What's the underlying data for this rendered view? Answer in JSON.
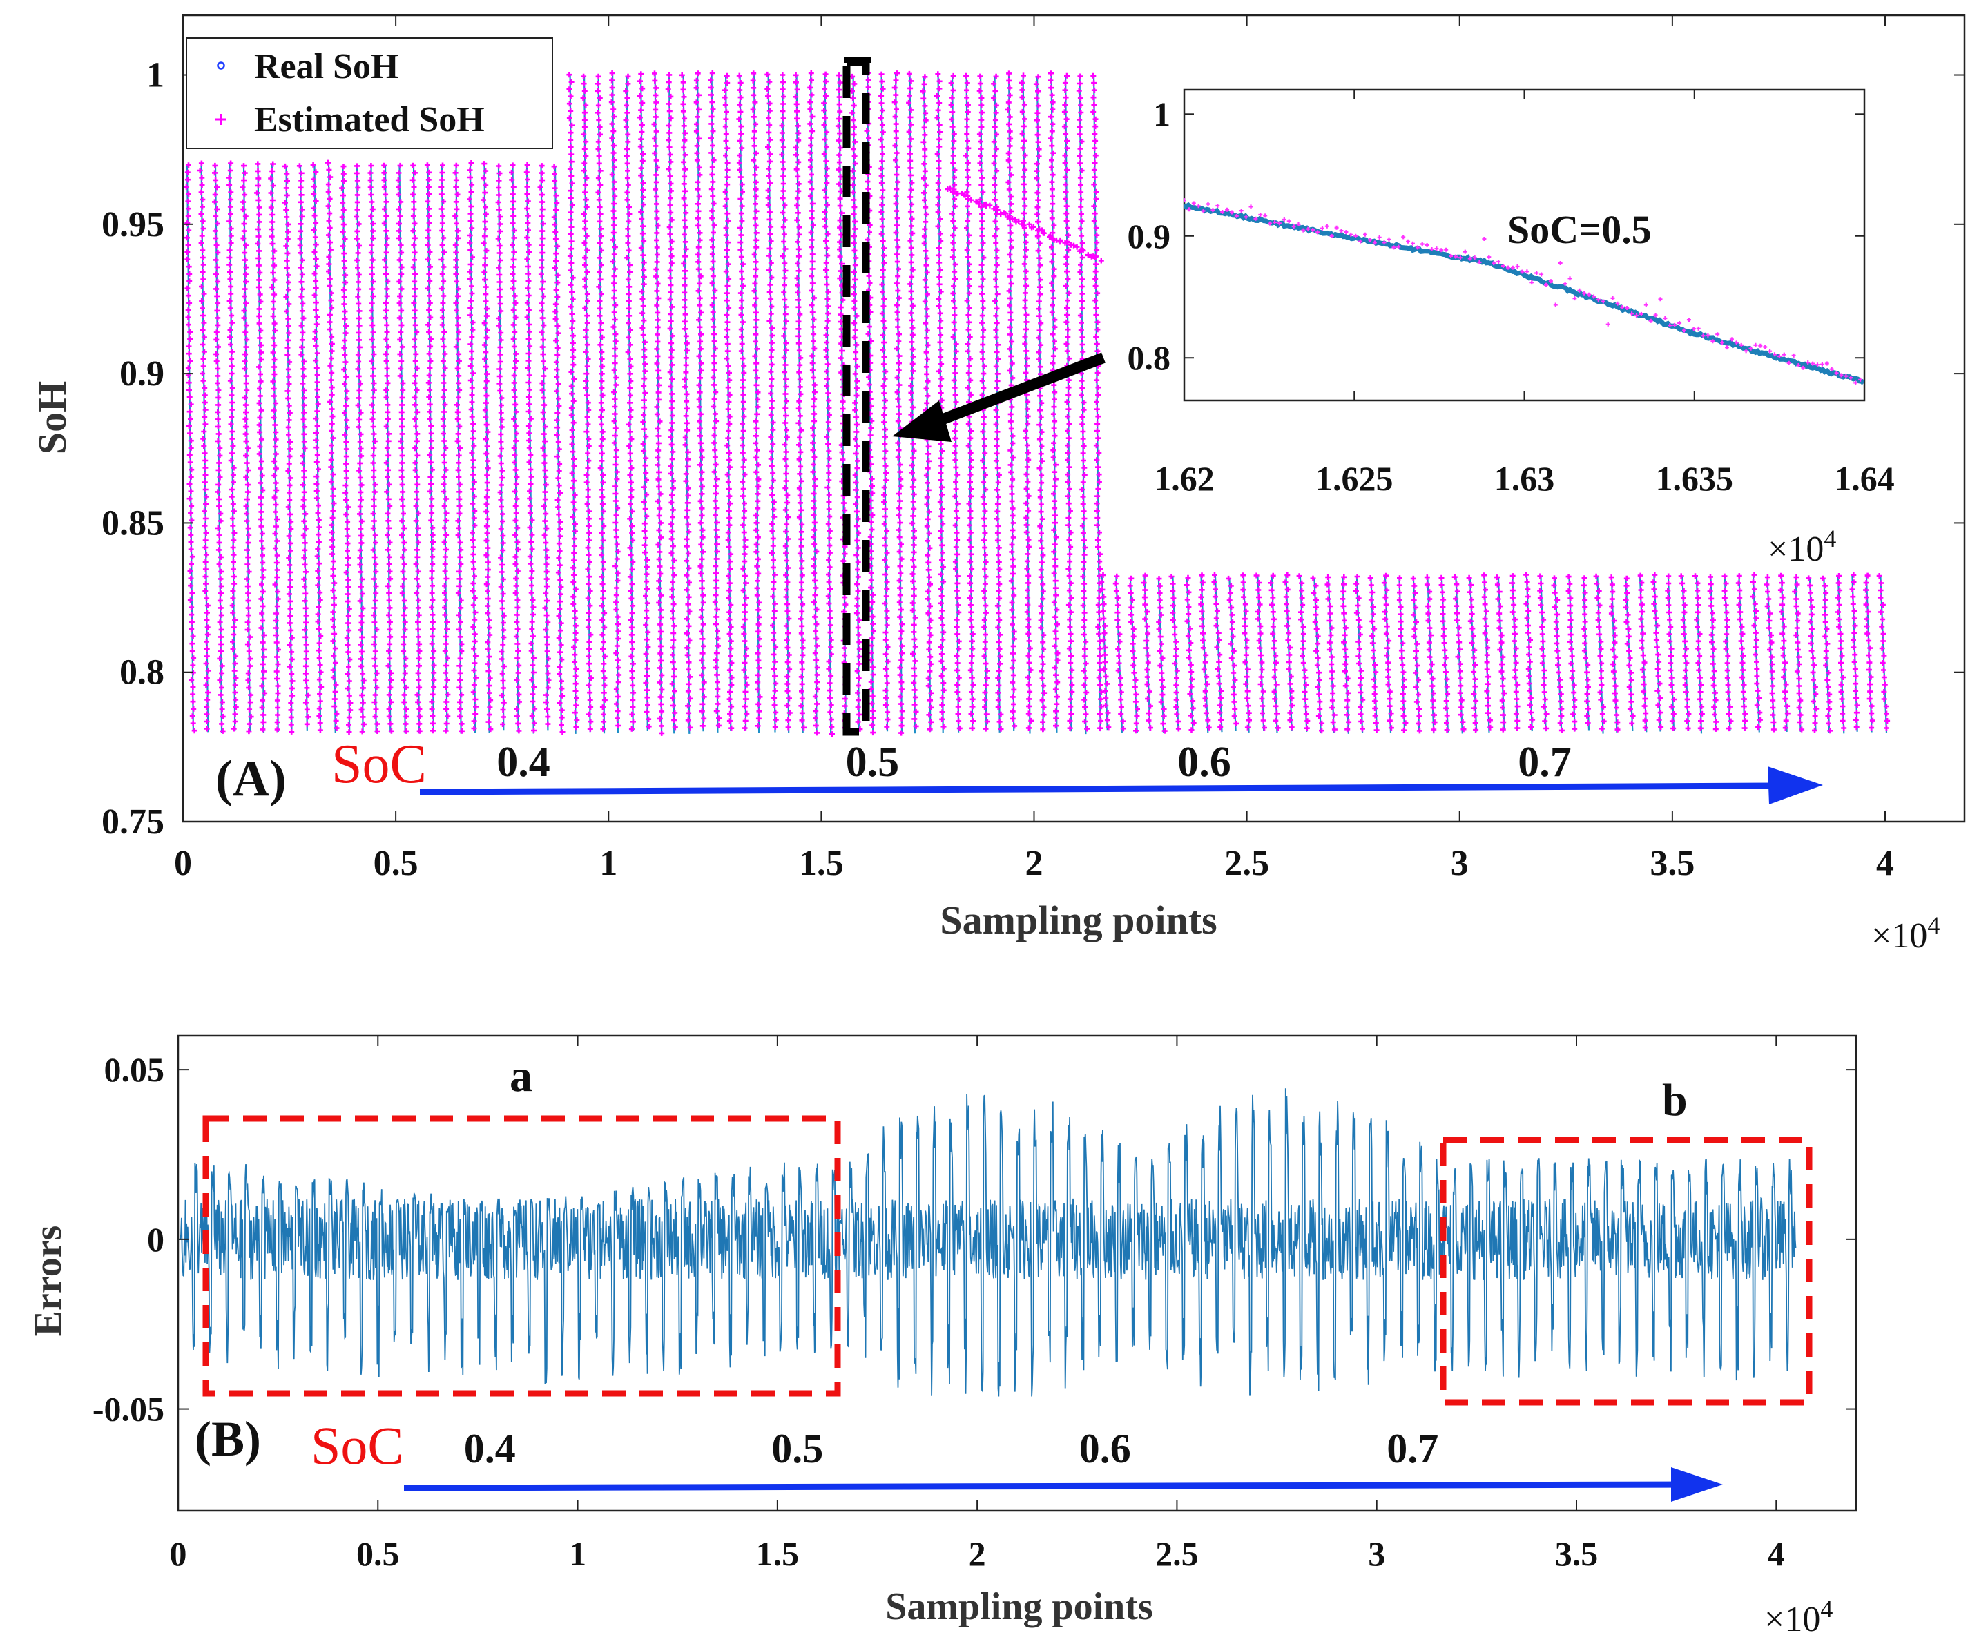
{
  "chart_data": [
    {
      "panel": "A",
      "type": "scatter",
      "xlabel": "Sampling points",
      "ylabel": "SoH",
      "x_exponent": "×10",
      "x_exponent_power": "4",
      "xlim": [
        0,
        40000
      ],
      "ylim": [
        0.75,
        1.02
      ],
      "xticks": [
        0,
        5000,
        10000,
        15000,
        20000,
        25000,
        30000,
        35000,
        40000
      ],
      "xtick_labels": [
        "0",
        "0.5",
        "1",
        "1.5",
        "2",
        "2.5",
        "3",
        "3.5",
        "4"
      ],
      "yticks": [
        0.75,
        0.8,
        0.85,
        0.9,
        0.95,
        1
      ],
      "ytick_labels": [
        "0.75",
        "0.8",
        "0.85",
        "0.9",
        "0.95",
        "1"
      ],
      "legend": {
        "position": "top-left",
        "entries": [
          {
            "name": "Real SoH",
            "color": "#1f3fff",
            "marker": "circle"
          },
          {
            "name": "Estimated SoH",
            "color": "#ff00ff",
            "marker": "plus"
          }
        ]
      },
      "series": [
        {
          "name": "Real SoH",
          "color": "#1e8fc8",
          "x_range": [
            0,
            40000
          ],
          "y_range": [
            0.78,
            1.0
          ]
        },
        {
          "name": "Estimated SoH",
          "color": "#ff00ff",
          "x_range": [
            0,
            40000
          ],
          "y_range": [
            0.78,
            1.0
          ]
        }
      ],
      "segments": [
        {
          "x_range": [
            0,
            9000
          ],
          "y_top": 0.97,
          "y_bottom": 0.78
        },
        {
          "x_range": [
            9000,
            21500
          ],
          "y_top": 1.0,
          "y_bottom": 0.78
        },
        {
          "x_range": [
            21500,
            40000
          ],
          "y_top": 0.832,
          "y_bottom": 0.78
        }
      ],
      "highlight_region": {
        "x_range": [
          15500,
          16200
        ],
        "y_range": [
          0.78,
          1.005
        ]
      },
      "panel_label": "(A)",
      "soc_label": "SoC",
      "soc_values": [
        "0.4",
        "0.5",
        "0.6",
        "0.7"
      ],
      "soc_value_positions_x": [
        8000,
        16200,
        24000,
        32000
      ],
      "soc_arrow": {
        "x_range": [
          5500,
          38500
        ],
        "color": "#1133ee"
      },
      "inset": {
        "annotation": "SoC=0.5",
        "xlim": [
          16200,
          16400
        ],
        "ylim": [
          0.765,
          1.02
        ],
        "xticks": [
          16200,
          16250,
          16300,
          16350,
          16400
        ],
        "xtick_labels": [
          "1.62",
          "1.625",
          "1.63",
          "1.635",
          "1.64"
        ],
        "yticks": [
          0.8,
          0.9,
          1
        ],
        "ytick_labels": [
          "0.8",
          "0.9",
          "1"
        ],
        "x_exponent": "×10",
        "x_exponent_power": "4",
        "real_soh": {
          "x": [
            16200,
            16250,
            16290,
            16300,
            16350,
            16400
          ],
          "y": [
            0.925,
            0.898,
            0.878,
            0.868,
            0.82,
            0.78
          ]
        },
        "estimated_soh": {
          "x": [
            16200,
            16250,
            16290,
            16300,
            16350,
            16400
          ],
          "y": [
            0.927,
            0.9,
            0.88,
            0.87,
            0.822,
            0.781
          ]
        }
      }
    },
    {
      "panel": "B",
      "type": "line",
      "xlabel": "Sampling points",
      "ylabel": "Errors",
      "x_exponent": "×10",
      "x_exponent_power": "4",
      "xlim": [
        0,
        42000
      ],
      "ylim": [
        -0.08,
        0.06
      ],
      "xticks": [
        0,
        5000,
        10000,
        15000,
        20000,
        25000,
        30000,
        35000,
        40000
      ],
      "xtick_labels": [
        "0",
        "0.5",
        "1",
        "1.5",
        "2",
        "2.5",
        "3",
        "3.5",
        "4"
      ],
      "yticks": [
        -0.05,
        0,
        0.05
      ],
      "ytick_labels": [
        "-0.05",
        "0",
        "0.05"
      ],
      "series": [
        {
          "name": "Errors",
          "color": "#1f77b4",
          "x_range": [
            0,
            40500
          ],
          "envelope_max": 0.047,
          "envelope_min": -0.05
        }
      ],
      "regions": [
        {
          "label": "a",
          "x_range": [
            600,
            16600
          ],
          "y_range": [
            -0.045,
            0.036
          ],
          "color": "#ee1111"
        },
        {
          "label": "b",
          "x_range": [
            31600,
            40800
          ],
          "y_range": [
            -0.048,
            0.03
          ],
          "color": "#ee1111"
        }
      ],
      "panel_label": "(B)",
      "soc_label": "SoC",
      "soc_values": [
        "0.4",
        "0.5",
        "0.6",
        "0.7"
      ],
      "soc_value_positions_x": [
        7800,
        15500,
        23200,
        30900
      ],
      "soc_arrow": {
        "x_range": [
          5600,
          38600
        ],
        "color": "#1133ee"
      }
    }
  ]
}
